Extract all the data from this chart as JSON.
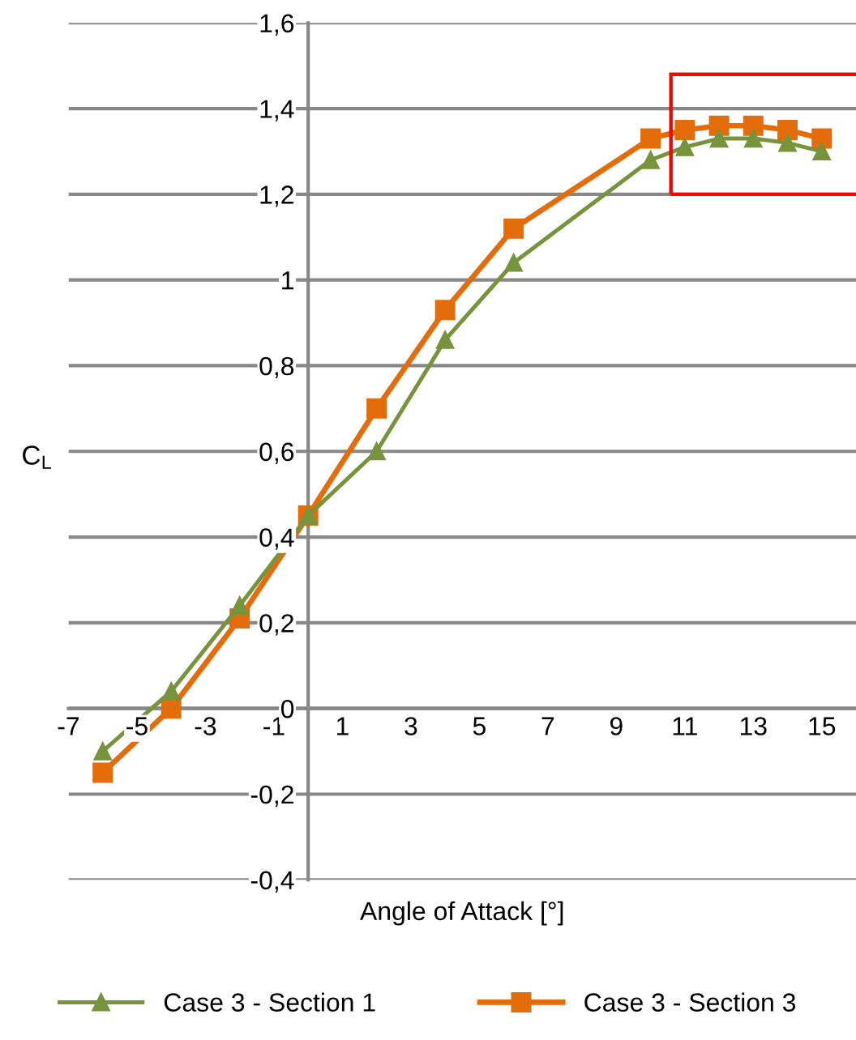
{
  "chart_data": {
    "type": "line",
    "xlabel": "Angle of Attack [°]",
    "ylabel": "C$_{L}$",
    "x": [
      -6,
      -4,
      -2,
      0,
      2,
      4,
      6,
      10,
      11,
      12,
      13,
      14,
      15
    ],
    "series": [
      {
        "name": "Case 3 - Section 1",
        "color": "#77933c",
        "marker": "triangle",
        "values": [
          -0.1,
          0.04,
          0.24,
          0.45,
          0.6,
          0.86,
          1.04,
          1.28,
          1.31,
          1.33,
          1.33,
          1.32,
          1.3
        ]
      },
      {
        "name": "Case 3 - Section 3",
        "color": "#e46c0a",
        "marker": "square",
        "values": [
          -0.15,
          0.0,
          0.21,
          0.45,
          0.7,
          0.93,
          1.12,
          1.33,
          1.35,
          1.36,
          1.36,
          1.35,
          1.33
        ]
      }
    ],
    "xlim": [
      -7,
      16
    ],
    "xticks": [
      -7,
      -5,
      -3,
      -1,
      1,
      3,
      5,
      7,
      9,
      11,
      13,
      15
    ],
    "ylim": [
      -0.4,
      1.6
    ],
    "yticks": [
      {
        "value": -0.4,
        "label": "-0,4"
      },
      {
        "value": -0.2,
        "label": "-0,2"
      },
      0,
      {
        "value": 0.2,
        "label": "0,2"
      },
      {
        "value": 0.4,
        "label": "0,4"
      },
      {
        "value": 0.6,
        "label": "0,6"
      },
      {
        "value": 0.8,
        "label": "0,8"
      },
      1,
      {
        "value": 1.2,
        "label": "1,2"
      },
      {
        "value": 1.4,
        "label": "1,4"
      },
      {
        "value": 1.6,
        "label": "1,6"
      }
    ],
    "grid": "y",
    "legend": "bottom",
    "line_style": "solid"
  }
}
